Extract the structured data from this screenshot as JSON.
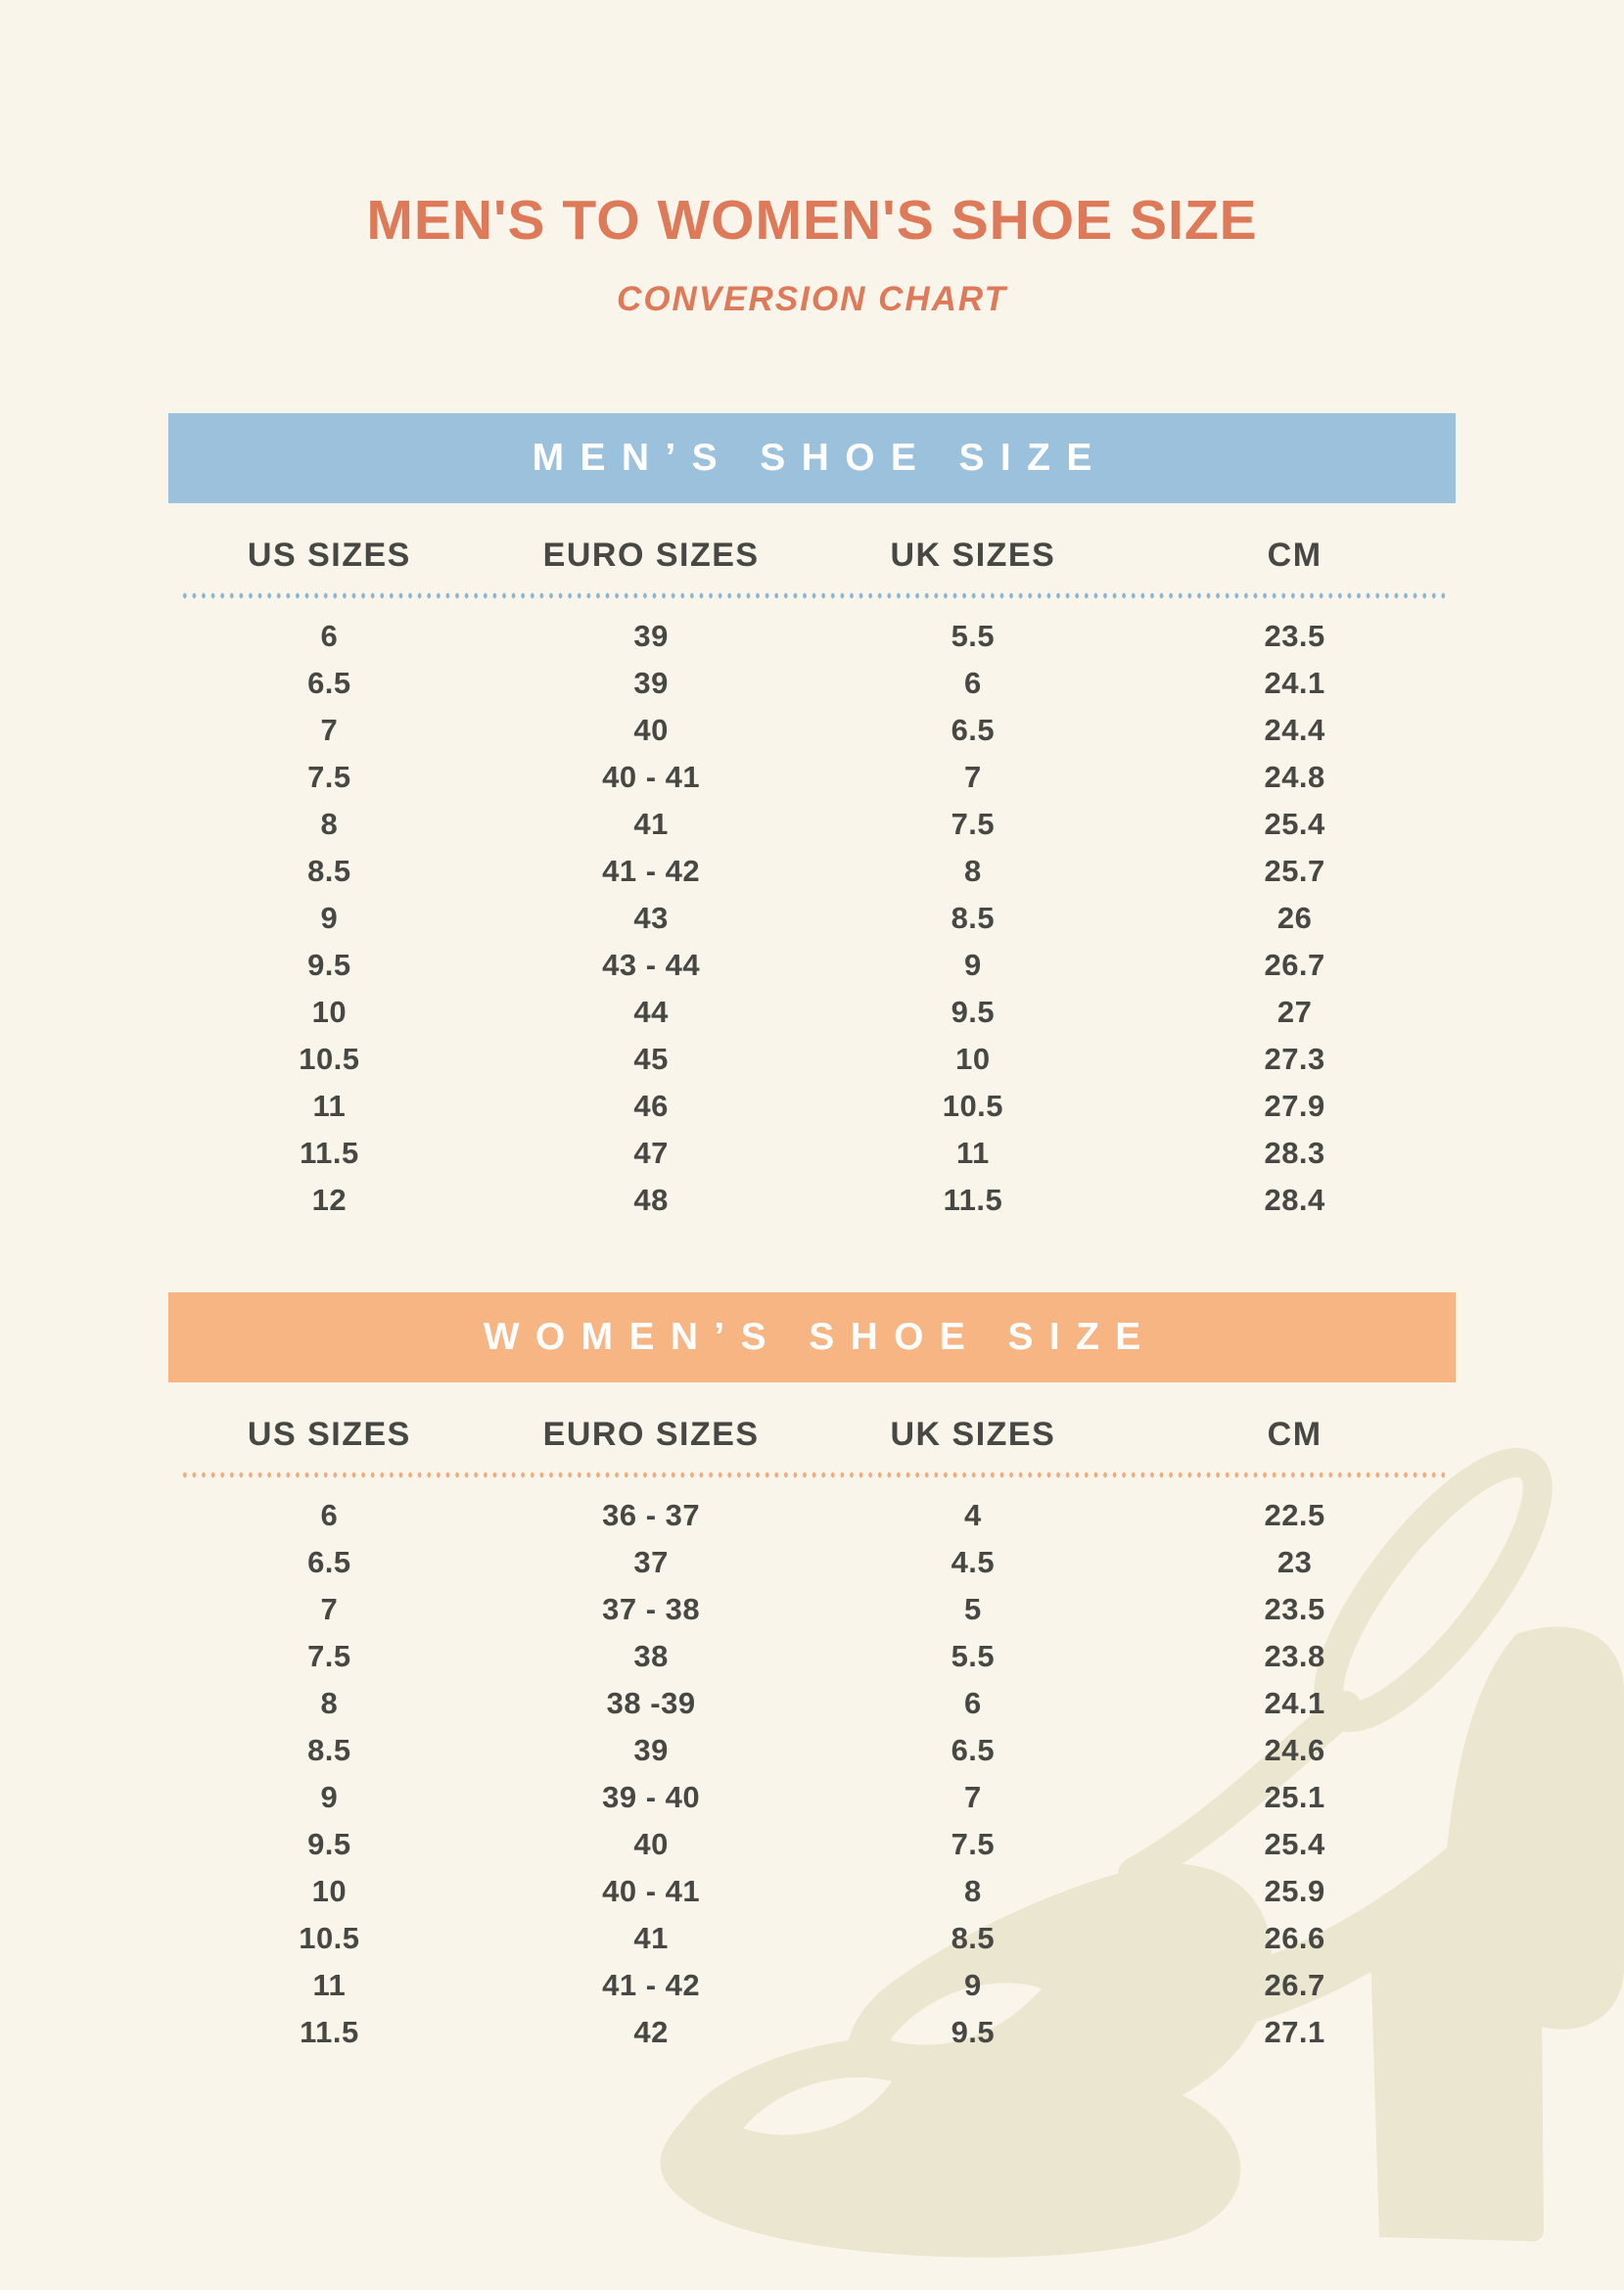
{
  "header": {
    "title": "MEN'S TO WOMEN'S SHOE SIZE",
    "subtitle": "CONVERSION CHART"
  },
  "colors": {
    "background": "#faf5ea",
    "title": "#de7a59",
    "men_banner": "#9cc1dc",
    "women_banner": "#f6b583",
    "banner_text": "#ffffff",
    "text_dark": "#474744",
    "men_dots": "#8cb5d2",
    "women_dots": "#f0ac7c",
    "watermark": "#ebe6cf"
  },
  "chart_data": [
    {
      "type": "table",
      "title": "MEN’S SHOE SIZE",
      "columns": [
        "US SIZES",
        "EURO SIZES",
        "UK SIZES",
        "CM"
      ],
      "rows": [
        [
          "6",
          "39",
          "5.5",
          "23.5"
        ],
        [
          "6.5",
          "39",
          "6",
          "24.1"
        ],
        [
          "7",
          "40",
          "6.5",
          "24.4"
        ],
        [
          "7.5",
          "40 - 41",
          "7",
          "24.8"
        ],
        [
          "8",
          "41",
          "7.5",
          "25.4"
        ],
        [
          "8.5",
          "41 - 42",
          "8",
          "25.7"
        ],
        [
          "9",
          "43",
          "8.5",
          "26"
        ],
        [
          "9.5",
          "43 - 44",
          "9",
          "26.7"
        ],
        [
          "10",
          "44",
          "9.5",
          "27"
        ],
        [
          "10.5",
          "45",
          "10",
          "27.3"
        ],
        [
          "11",
          "46",
          "10.5",
          "27.9"
        ],
        [
          "11.5",
          "47",
          "11",
          "28.3"
        ],
        [
          "12",
          "48",
          "11.5",
          "28.4"
        ]
      ]
    },
    {
      "type": "table",
      "title": "WOMEN’S SHOE SIZE",
      "columns": [
        "US SIZES",
        "EURO SIZES",
        "UK SIZES",
        "CM"
      ],
      "rows": [
        [
          "6",
          "36 - 37",
          "4",
          "22.5"
        ],
        [
          "6.5",
          "37",
          "4.5",
          "23"
        ],
        [
          "7",
          "37 - 38",
          "5",
          "23.5"
        ],
        [
          "7.5",
          "38",
          "5.5",
          "23.8"
        ],
        [
          "8",
          "38 -39",
          "6",
          "24.1"
        ],
        [
          "8.5",
          "39",
          "6.5",
          "24.6"
        ],
        [
          "9",
          "39 - 40",
          "7",
          "25.1"
        ],
        [
          "9.5",
          "40",
          "7.5",
          "25.4"
        ],
        [
          "10",
          "40 - 41",
          "8",
          "25.9"
        ],
        [
          "10.5",
          "41",
          "8.5",
          "26.6"
        ],
        [
          "11",
          "41 - 42",
          "9",
          "26.7"
        ],
        [
          "11.5",
          "42",
          "9.5",
          "27.1"
        ]
      ]
    }
  ],
  "watermark_icon": "high-heel-shoe"
}
